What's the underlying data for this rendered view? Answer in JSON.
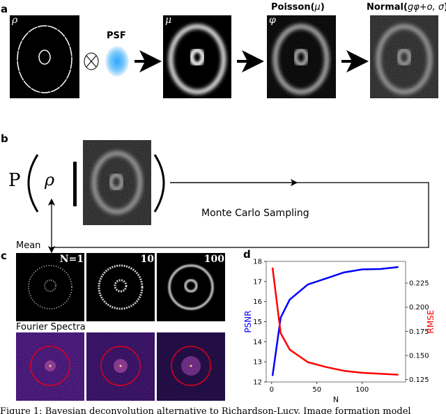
{
  "panel_a": {
    "label": "a",
    "rho_label": "ρ",
    "psf_label": "PSF",
    "mu_label": "μ",
    "phi_label": "φ",
    "poisson_title_word": "Poisson(",
    "poisson_title_arg": "μ",
    "poisson_title_close": ")",
    "normal_title_word": "Normal(",
    "normal_title_arg": "gφ+o, σ",
    "normal_title_close": ")"
  },
  "panel_b": {
    "label": "b",
    "prob_symbol": "P",
    "rho": "ρ",
    "sampling_label": "Monte Carlo Sampling"
  },
  "panel_c": {
    "label": "c",
    "mean_label": "Mean",
    "fourier_label": "Fourier Spectra",
    "sample_counts": [
      "N=1",
      "10",
      "100"
    ]
  },
  "panel_d": {
    "label": "d"
  },
  "caption": "Figure 1: Bayesian deconvolution alternative to Richardson-Lucy. Image formation model",
  "chart_data": {
    "type": "line",
    "title": "",
    "xlabel": "N",
    "ylabel": "PSNR",
    "y2label": "RMSE",
    "x": [
      1,
      10,
      20,
      40,
      60,
      80,
      100,
      120,
      140
    ],
    "xlim": [
      -6,
      148
    ],
    "xticks": [
      "0",
      "50",
      "100"
    ],
    "ylim": [
      12,
      18
    ],
    "yticks": [
      "12",
      "13",
      "14",
      "15",
      "16",
      "17",
      "18"
    ],
    "y2lim": [
      0.1225,
      0.2475
    ],
    "y2ticks": [
      "0.125",
      "0.150",
      "0.175",
      "0.200",
      "0.225"
    ],
    "series": [
      {
        "name": "PSNR",
        "axis": "left",
        "color": "#0000ff",
        "values": [
          12.3,
          15.2,
          16.1,
          16.85,
          17.15,
          17.45,
          17.6,
          17.62,
          17.72
        ]
      },
      {
        "name": "RMSE",
        "axis": "right",
        "color": "#ff0000",
        "values": [
          0.241,
          0.173,
          0.156,
          0.143,
          0.138,
          0.134,
          0.132,
          0.131,
          0.13
        ]
      }
    ],
    "grid": false
  }
}
